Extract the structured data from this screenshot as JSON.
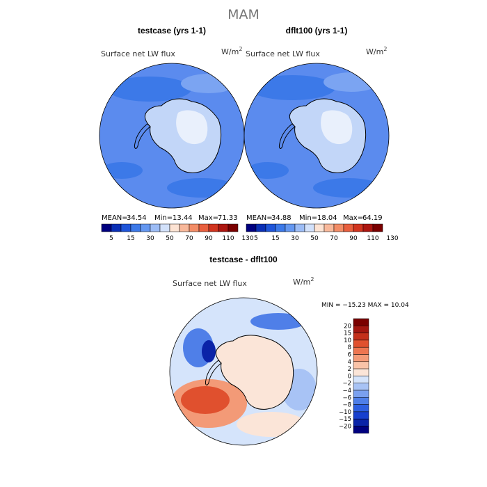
{
  "figure": {
    "main_title": "MAM",
    "panel_left_title": "testcase (yrs 1-1)",
    "panel_right_title": "dflt100 (yrs 1-1)",
    "panel_diff_title": "testcase - dflt100",
    "field_label": "Surface net LW flux",
    "units": "W/m",
    "units_exp": "2"
  },
  "stats": {
    "left": {
      "mean_label": "MEAN=",
      "mean": "34.54",
      "min_label": "Min=",
      "min": "13.44",
      "max_label": "Max=",
      "max": "71.33"
    },
    "right": {
      "mean_label": "MEAN=",
      "mean": "34.88",
      "min_label": "Min=",
      "min": "18.04",
      "max_label": "Max=",
      "max": "64.19"
    },
    "diff": "MIN = −15.23 MAX =  10.04"
  },
  "colors": {
    "abs_scale": [
      "#00007f",
      "#0a2fb5",
      "#1f55d9",
      "#3c79e8",
      "#6497f0",
      "#9cbcf5",
      "#d2e1fa",
      "#fde3d3",
      "#f8b89a",
      "#f28c66",
      "#e85f3e",
      "#d1341f",
      "#ac1610",
      "#7a0000"
    ],
    "diff_scale": [
      "#00007f",
      "#0a23a8",
      "#173fce",
      "#2e5fe0",
      "#4f7fe8",
      "#7aa0ef",
      "#a8c3f5",
      "#d5e4fb",
      "#fbe5d8",
      "#f9c3a8",
      "#f39a77",
      "#ed7550",
      "#e0502e",
      "#c4301b",
      "#a31610",
      "#7a0000"
    ],
    "land_outline": "#000000",
    "ocean_fill": "#5b8bee"
  },
  "chart_data": [
    {
      "type": "heatmap",
      "title": "testcase (yrs 1-1)",
      "subtitle": "Surface net LW flux",
      "units": "W/m2",
      "projection": "south polar stereographic",
      "colorbar_levels": [
        5,
        10,
        15,
        20,
        30,
        40,
        50,
        60,
        70,
        80,
        90,
        100,
        110,
        120,
        130
      ],
      "colorbar_tick_labels": [
        "5",
        "15",
        "30",
        "50",
        "70",
        "90",
        "110",
        "130"
      ],
      "mean": 34.54,
      "min": 13.44,
      "max": 71.33
    },
    {
      "type": "heatmap",
      "title": "dflt100 (yrs 1-1)",
      "subtitle": "Surface net LW flux",
      "units": "W/m2",
      "projection": "south polar stereographic",
      "colorbar_levels": [
        5,
        10,
        15,
        20,
        30,
        40,
        50,
        60,
        70,
        80,
        90,
        100,
        110,
        120,
        130
      ],
      "colorbar_tick_labels": [
        "5",
        "15",
        "30",
        "50",
        "70",
        "90",
        "110",
        "130"
      ],
      "mean": 34.88,
      "min": 18.04,
      "max": 64.19
    },
    {
      "type": "heatmap",
      "title": "testcase - dflt100",
      "subtitle": "Surface net LW flux",
      "units": "W/m2",
      "projection": "south polar stereographic",
      "colorbar_levels": [
        -20,
        -15,
        -10,
        -8,
        -6,
        -4,
        -2,
        0,
        2,
        4,
        6,
        8,
        10,
        15,
        20
      ],
      "colorbar_tick_labels": [
        "20",
        "15",
        "10",
        "8",
        "6",
        "4",
        "2",
        "0",
        "−2",
        "−4",
        "−6",
        "−8",
        "−10",
        "−15",
        "−20"
      ],
      "min": -15.23,
      "max": 10.04
    }
  ]
}
